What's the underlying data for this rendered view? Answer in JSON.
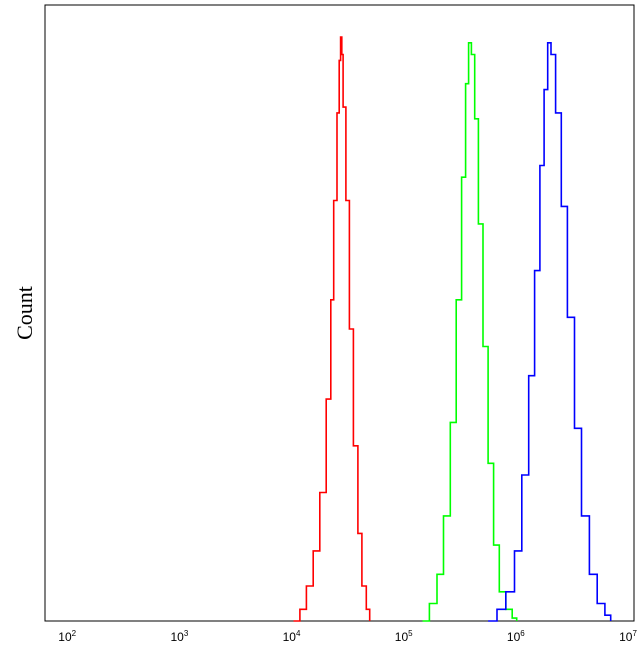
{
  "chart_data": {
    "type": "line",
    "xlabel": "",
    "ylabel": "Count",
    "xscale": "log",
    "xlim": [
      56,
      10000000
    ],
    "ylim": [
      0,
      1
    ],
    "grid": false,
    "legend": "none",
    "x_ticks": [
      {
        "value": 100,
        "base": "10",
        "exp": "2"
      },
      {
        "value": 1000,
        "base": "10",
        "exp": "3"
      },
      {
        "value": 10000,
        "base": "10",
        "exp": "4"
      },
      {
        "value": 100000,
        "base": "10",
        "exp": "5"
      },
      {
        "value": 1000000,
        "base": "10",
        "exp": "6"
      },
      {
        "value": 10000000,
        "base": "10",
        "exp": "7"
      }
    ],
    "series": [
      {
        "color": "#ff0000",
        "x": [
          9200,
          10500,
          12000,
          13800,
          15800,
          18000,
          19800,
          21000,
          22500,
          23500,
          24200,
          24800,
          25500,
          27000,
          29000,
          31500,
          34500,
          37500,
          41000,
          44000
        ],
        "y": [
          0.0,
          0.02,
          0.06,
          0.12,
          0.22,
          0.38,
          0.55,
          0.72,
          0.87,
          0.96,
          1.0,
          0.97,
          0.88,
          0.72,
          0.5,
          0.3,
          0.15,
          0.06,
          0.02,
          0.0
        ]
      },
      {
        "color": "#00ff00",
        "x": [
          130000,
          150000,
          175000,
          200000,
          230000,
          260000,
          290000,
          315000,
          335000,
          355000,
          380000,
          410000,
          450000,
          500000,
          560000,
          630000,
          720000,
          820000,
          900000
        ],
        "y": [
          0.0,
          0.03,
          0.08,
          0.18,
          0.34,
          0.55,
          0.76,
          0.92,
          0.99,
          0.97,
          0.86,
          0.68,
          0.47,
          0.27,
          0.13,
          0.05,
          0.02,
          0.005,
          0.0
        ]
      },
      {
        "color": "#0000ff",
        "x": [
          500000,
          600000,
          720000,
          860000,
          1000000,
          1150000,
          1300000,
          1450000,
          1580000,
          1700000,
          1820000,
          2000000,
          2250000,
          2550000,
          2950000,
          3400000,
          4000000,
          4700000,
          5500000,
          6200000
        ],
        "y": [
          0.0,
          0.02,
          0.05,
          0.12,
          0.25,
          0.42,
          0.6,
          0.78,
          0.91,
          0.99,
          0.97,
          0.87,
          0.71,
          0.52,
          0.33,
          0.18,
          0.08,
          0.03,
          0.01,
          0.0
        ]
      }
    ]
  }
}
